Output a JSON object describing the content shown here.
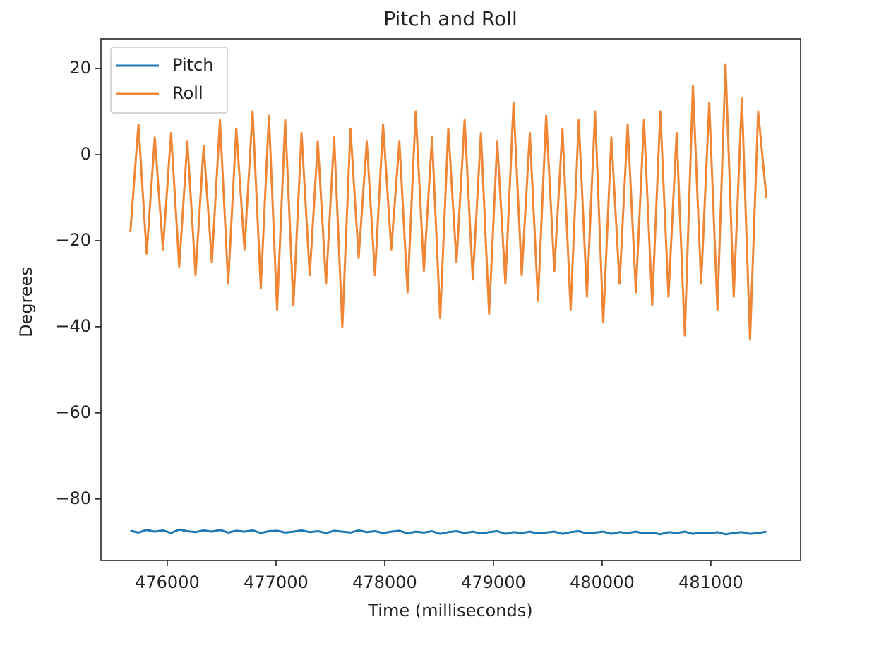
{
  "chart_data": {
    "type": "line",
    "title": "Pitch and Roll",
    "x_label": "Time (milliseconds)",
    "y_label": "Degrees",
    "x": [
      475660,
      475735,
      475810,
      475885,
      475960,
      476035,
      476110,
      476185,
      476260,
      476335,
      476410,
      476485,
      476560,
      476635,
      476710,
      476785,
      476860,
      476935,
      477010,
      477085,
      477160,
      477235,
      477310,
      477385,
      477460,
      477535,
      477610,
      477685,
      477760,
      477835,
      477910,
      477985,
      478060,
      478135,
      478210,
      478285,
      478360,
      478435,
      478510,
      478585,
      478660,
      478735,
      478810,
      478885,
      478960,
      479035,
      479110,
      479185,
      479260,
      479335,
      479410,
      479485,
      479560,
      479635,
      479710,
      479785,
      479860,
      479935,
      480010,
      480085,
      480160,
      480235,
      480310,
      480385,
      480460,
      480535,
      480610,
      480685,
      480760,
      480835,
      480910,
      480985,
      481060,
      481135,
      481210,
      481285,
      481360,
      481435,
      481510
    ],
    "series": [
      {
        "name": "Pitch",
        "color": "#1f77b4",
        "values": [
          -87.4,
          -87.8,
          -87.2,
          -87.6,
          -87.3,
          -87.9,
          -87.1,
          -87.5,
          -87.7,
          -87.3,
          -87.6,
          -87.2,
          -87.8,
          -87.4,
          -87.6,
          -87.3,
          -87.9,
          -87.5,
          -87.4,
          -87.8,
          -87.6,
          -87.3,
          -87.7,
          -87.5,
          -87.9,
          -87.4,
          -87.6,
          -87.8,
          -87.3,
          -87.7,
          -87.5,
          -87.9,
          -87.6,
          -87.4,
          -88.0,
          -87.6,
          -87.8,
          -87.5,
          -88.1,
          -87.7,
          -87.5,
          -87.9,
          -87.6,
          -88.0,
          -87.7,
          -87.5,
          -88.1,
          -87.7,
          -87.9,
          -87.6,
          -88.0,
          -87.8,
          -87.6,
          -88.1,
          -87.7,
          -87.5,
          -88.0,
          -87.8,
          -87.6,
          -88.1,
          -87.7,
          -87.9,
          -87.6,
          -88.0,
          -87.8,
          -88.2,
          -87.7,
          -87.9,
          -87.6,
          -88.1,
          -87.8,
          -88.0,
          -87.7,
          -88.2,
          -87.9,
          -87.7,
          -88.1,
          -87.9,
          -87.6
        ]
      },
      {
        "name": "Roll",
        "color": "#ef8636",
        "values": [
          -18,
          7,
          -23,
          4,
          -22,
          5,
          -26,
          3,
          -28,
          2,
          -25,
          8,
          -30,
          6,
          -22,
          10,
          -31,
          9,
          -36,
          8,
          -35,
          5,
          -28,
          3,
          -30,
          4,
          -40,
          6,
          -24,
          3,
          -28,
          7,
          -22,
          3,
          -32,
          10,
          -27,
          4,
          -38,
          6,
          -25,
          8,
          -29,
          5,
          -37,
          3,
          -30,
          12,
          -28,
          5,
          -34,
          9,
          -27,
          6,
          -36,
          8,
          -33,
          10,
          -39,
          4,
          -30,
          7,
          -32,
          8,
          -35,
          10,
          -33,
          5,
          -42,
          16,
          -30,
          12,
          -36,
          21,
          -33,
          13,
          -43,
          10,
          -10
        ]
      }
    ],
    "xlim": [
      475390,
      481825
    ],
    "xticks": [
      476000,
      477000,
      478000,
      479000,
      480000,
      481000
    ],
    "ylim": [
      -94.3,
      26.9
    ],
    "yticks": [
      {
        "value": -80,
        "label": "−80"
      },
      {
        "value": -60,
        "label": "−60"
      },
      {
        "value": -40,
        "label": "−40"
      },
      {
        "value": -20,
        "label": "−20"
      },
      0,
      20
    ],
    "legend": "upper left",
    "grid": false
  }
}
